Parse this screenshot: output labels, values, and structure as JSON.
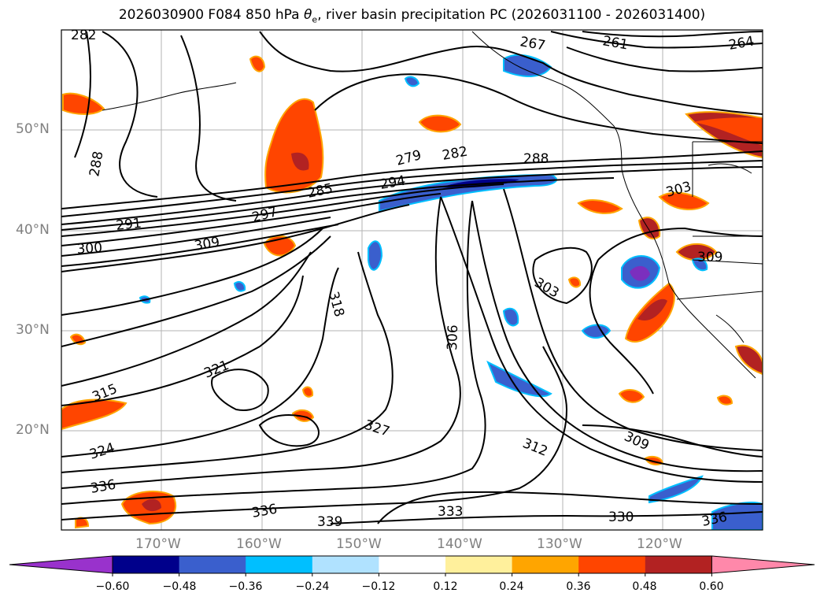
{
  "title": "2026030900 F084 850 hPa θe, river basin precipitation PC (2026031100 - 2026031400)",
  "title_parts": {
    "prefix": "2026030900 F084 850 hPa ",
    "theta": "θ",
    "sub": "e",
    "suffix": ", river basin precipitation PC (2026031100 - 2026031400)"
  },
  "map": {
    "lat_labels": [
      "50°N",
      "40°N",
      "30°N",
      "20°N"
    ],
    "lon_labels": [
      "170°W",
      "160°W",
      "150°W",
      "140°W",
      "130°W",
      "120°W"
    ],
    "contour_labels": [
      "282",
      "267",
      "261",
      "264",
      "288",
      "279",
      "282",
      "288",
      "294",
      "285",
      "297",
      "291",
      "300",
      "309",
      "303",
      "309",
      "303",
      "318",
      "306",
      "321",
      "315",
      "324",
      "327",
      "312",
      "309",
      "336",
      "336",
      "339",
      "333",
      "330",
      "336"
    ]
  },
  "colorbar": {
    "ticks": [
      "−0.60",
      "−0.48",
      "−0.36",
      "−0.24",
      "−0.12",
      "0.12",
      "0.24",
      "0.36",
      "0.48",
      "0.60"
    ],
    "colors": {
      "under": "#9932cc",
      "c1": "#00008b",
      "c2": "#3a5fcd",
      "c3": "#00bfff",
      "c4": "#b0e2ff",
      "c5": "#ffffff",
      "c6": "#fff09c",
      "c7": "#ffa500",
      "c8": "#ff4500",
      "c9": "#b22222",
      "over": "#ff88aa"
    }
  }
}
